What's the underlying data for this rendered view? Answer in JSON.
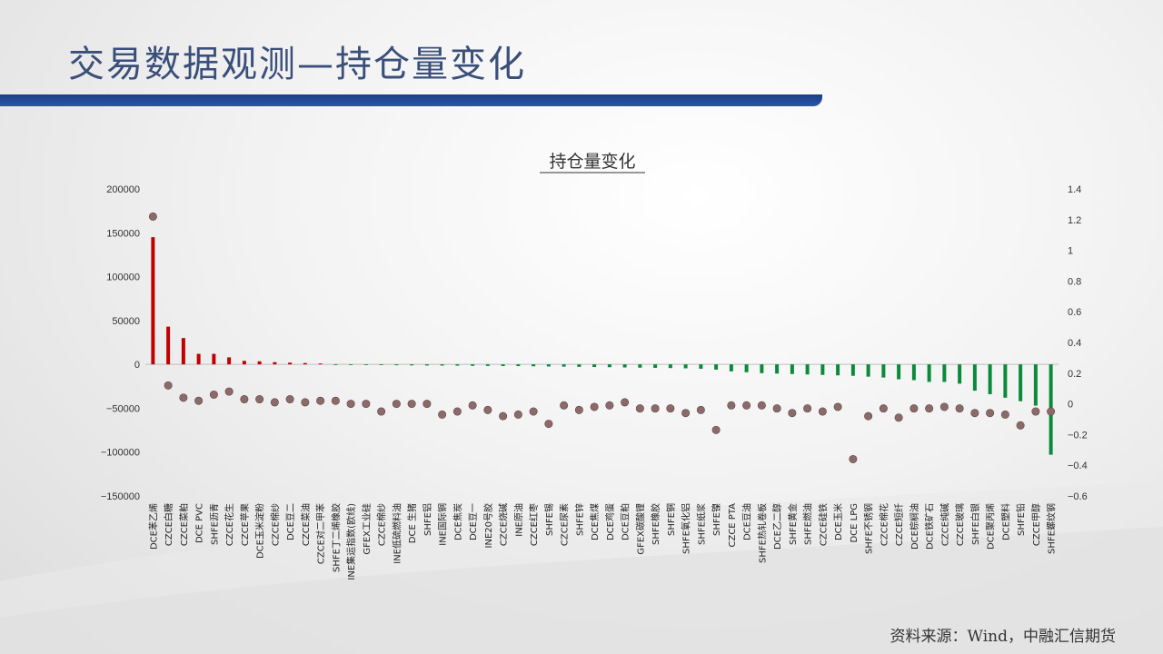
{
  "slide": {
    "title": "交易数据观测—持仓量变化",
    "source": "资料来源：Wind，中融汇信期货"
  },
  "colors": {
    "positive": "#c00000",
    "negative": "#0a8a3a",
    "marker": "#8c6a6a",
    "title_bar": "#1d3f86"
  },
  "chart_data": {
    "type": "bar",
    "title": "持仓量变化",
    "categories": [
      "DCE苯乙烯",
      "CZCE白糖",
      "CZCE菜粕",
      "DCE PVC",
      "SHFE沥青",
      "CZCE花生",
      "CZCE苹果",
      "DCE玉米淀粉",
      "CZCE棉纱",
      "DCE豆二",
      "CZCE菜油",
      "CZCE对二甲苯",
      "SHFE丁二烯橡胶",
      "INE集运指数(欧线)",
      "GFEX工业硅",
      "CZCE棉纱",
      "INE低硫燃料油",
      "DCE 生猪",
      "SHFE铝",
      "INE国际铜",
      "DCE焦炭",
      "DCE豆一",
      "INE20号胶",
      "CZCE烧碱",
      "INE原油",
      "CZCE红枣",
      "SHFE锡",
      "CZCE尿素",
      "SHFE锌",
      "DCE焦煤",
      "DCE鸡蛋",
      "DCE豆粕",
      "GFEX碳酸锂",
      "SHFE橡胶",
      "SHFE铜",
      "SHFE氧化铝",
      "SHFE纸浆",
      "SHFE镍",
      "CZCE PTA",
      "DCE豆油",
      "SHFE热轧卷板",
      "DCE乙二醇",
      "SHFE黄金",
      "SHFE燃油",
      "CZCE硅铁",
      "DCE玉米",
      "DCE LPG",
      "SHFE不锈钢",
      "CZCE棉花",
      "CZCE短纤",
      "DCE棕榈油",
      "DCE铁矿石",
      "CZCE纯碱",
      "CZCE玻璃",
      "SHFE白银",
      "DCE聚丙烯",
      "DCE塑料",
      "SHFE铅",
      "CZCE甲醇",
      "SHFE螺纹钢"
    ],
    "series": [
      {
        "axis": "left",
        "style": "bar",
        "values": [
          145000,
          43000,
          30000,
          12000,
          12000,
          8000,
          4000,
          3500,
          2500,
          2000,
          1500,
          1000,
          -300,
          -500,
          -700,
          -900,
          -1000,
          -1200,
          -1300,
          -1400,
          -1500,
          -1700,
          -1800,
          -1900,
          -2000,
          -2200,
          -2400,
          -2600,
          -2800,
          -3000,
          -3200,
          -3500,
          -3800,
          -4000,
          -4200,
          -4500,
          -5000,
          -6000,
          -8000,
          -9000,
          -10000,
          -10500,
          -11000,
          -11500,
          -12000,
          -12500,
          -13000,
          -14000,
          -15000,
          -17000,
          -18000,
          -20000,
          -20000,
          -22000,
          -30000,
          -34000,
          -38000,
          -42000,
          -47000,
          -103000
        ]
      },
      {
        "axis": "right",
        "style": "marker",
        "values": [
          1.22,
          0.12,
          0.04,
          0.02,
          0.06,
          0.08,
          0.03,
          0.03,
          0.01,
          0.03,
          0.01,
          0.02,
          0.02,
          0.0,
          0.0,
          -0.05,
          0.0,
          0.0,
          0.0,
          -0.07,
          -0.05,
          -0.01,
          -0.04,
          -0.08,
          -0.07,
          -0.05,
          -0.13,
          -0.01,
          -0.04,
          -0.02,
          -0.01,
          0.01,
          -0.03,
          -0.03,
          -0.03,
          -0.06,
          -0.04,
          -0.17,
          -0.01,
          -0.01,
          -0.01,
          -0.03,
          -0.06,
          -0.03,
          -0.05,
          -0.02,
          -0.36,
          -0.08,
          -0.03,
          -0.09,
          -0.03,
          -0.03,
          -0.02,
          -0.03,
          -0.06,
          -0.06,
          -0.07,
          -0.14,
          -0.05,
          -0.05
        ]
      }
    ],
    "y_left": {
      "min": -150000,
      "max": 200000,
      "step": 50000,
      "ticks": [
        "200000",
        "150000",
        "100000",
        "50000",
        "0",
        "−50000",
        "−100000",
        "−150000"
      ]
    },
    "y_right": {
      "min": -0.6,
      "max": 1.4,
      "step": 0.2,
      "ticks": [
        "1.4",
        "1.2",
        "1",
        "0.8",
        "0.6",
        "0.4",
        "0.2",
        "0",
        "−0.2",
        "−0.4",
        "−0.6"
      ]
    }
  }
}
